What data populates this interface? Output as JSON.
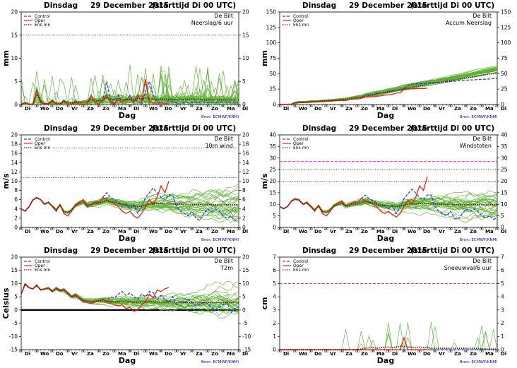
{
  "header": {
    "title_left": "Dinsdag",
    "title_date": "29 December 2015",
    "title_run": "(starttijd  Di 00 UTC)"
  },
  "location": "De Bilt",
  "source": "Bron: ECMWF/KNMI",
  "legend": [
    "Control",
    "Oper",
    "Ens mn"
  ],
  "xlabel": "Dag",
  "colors": {
    "ensemble": "#5ab032",
    "control": "#2244dd",
    "oper": "#ee2211",
    "ens_mean": "#6b1a0a",
    "threshold_dotted": "#000000",
    "threshold_magenta": "#ff00ff",
    "zero_line": "#000000"
  },
  "day_labels": [
    "Di",
    "Wo",
    "Do",
    "Vr",
    "Za",
    "Zo",
    "Ma",
    "Di",
    "Wo",
    "Do",
    "Vr",
    "Za",
    "Zo",
    "Ma",
    "Di"
  ],
  "chart_data": [
    {
      "type": "line",
      "title": "Neerslag/6 uur",
      "ylabel": "mm",
      "ylim": [
        0,
        20
      ],
      "yticks": [
        0,
        5,
        10,
        15,
        20
      ],
      "threshold_lines": [
        {
          "y": 15,
          "style": "dotted"
        }
      ],
      "series": [
        {
          "name": "Control",
          "values": [
            0,
            0.5,
            0,
            0,
            3,
            0.5,
            0,
            0,
            1,
            0,
            0,
            1,
            0,
            0,
            0.5,
            0,
            0,
            0,
            2,
            0.5,
            0,
            1,
            5,
            1,
            0,
            2,
            0.5,
            1,
            2,
            0.5,
            1,
            0,
            3,
            5,
            2,
            0.5,
            0.5,
            0,
            1,
            0.5,
            0.5,
            0,
            0.5,
            0.5,
            0.5,
            0.5,
            0.5,
            0.5,
            0.5,
            0.5,
            0.5,
            0.5,
            0.5,
            0.5,
            0.5,
            0.5,
            0.5
          ]
        },
        {
          "name": "Oper",
          "values": [
            0,
            0.5,
            0,
            0,
            3,
            0.5,
            0,
            0,
            1,
            0,
            0,
            1,
            0,
            0,
            0.5,
            0,
            0,
            0,
            2,
            0.5,
            0,
            1,
            2,
            0.5,
            0,
            1,
            0.5,
            1,
            1,
            0.5,
            2,
            0.5,
            5.5,
            0.5,
            0.5,
            0,
            0.5,
            0,
            0.5
          ]
        },
        {
          "name": "Ens mn",
          "values": [
            0,
            0.3,
            0.1,
            0.1,
            2.2,
            0.8,
            0.2,
            0.2,
            0.6,
            0.3,
            0.2,
            0.6,
            0.4,
            0.3,
            0.6,
            0.4,
            0.5,
            0.6,
            1.1,
            0.8,
            0.8,
            1,
            1.5,
            1.2,
            1,
            1.3,
            1.1,
            1.1,
            1.2,
            1,
            1.3,
            1.2,
            1.4,
            1.3,
            1.2,
            1,
            1.2,
            1.1,
            1.2,
            1.1,
            1.1,
            1,
            1.1,
            1.1,
            1.2,
            1.1,
            1.1,
            1,
            1,
            1.1,
            1,
            1,
            1.1,
            1,
            1,
            1,
            1
          ]
        }
      ]
    },
    {
      "type": "line",
      "title": "Accum Neerslag",
      "ylabel": "mm",
      "ylim": [
        0,
        150
      ],
      "yticks": [
        0,
        25,
        50,
        75,
        100,
        125,
        150
      ],
      "threshold_lines": [],
      "series": [
        {
          "name": "Control",
          "values": [
            0,
            0.5,
            0.5,
            0.5,
            3.5,
            4,
            4,
            4,
            5,
            5,
            5,
            6,
            6,
            6,
            6.5,
            6.5,
            6.5,
            6.5,
            8.5,
            9,
            9,
            10,
            15,
            16,
            16,
            18,
            18.5,
            19.5,
            21.5,
            22,
            23,
            23,
            26,
            31,
            33,
            33.5,
            34,
            34,
            35,
            35.5,
            36,
            36,
            36.5,
            37,
            37.5,
            38,
            38.5,
            39,
            39.5,
            40,
            40,
            40.5,
            41,
            41,
            41.5,
            42,
            42
          ]
        },
        {
          "name": "Oper",
          "values": [
            0,
            0.5,
            0.5,
            0.5,
            3.5,
            4,
            4,
            4,
            5,
            5,
            5,
            6,
            6,
            6,
            6.5,
            6.5,
            6.5,
            6.5,
            8.5,
            9,
            9,
            10,
            12,
            12.5,
            12.5,
            13.5,
            14,
            15,
            16,
            16.5,
            18.5,
            19,
            24.5,
            25,
            25.5,
            25.5,
            26,
            26,
            26.5
          ]
        },
        {
          "name": "Ens mn",
          "values": [
            0,
            0.3,
            0.4,
            0.5,
            2.7,
            3.5,
            3.7,
            3.9,
            4.5,
            4.8,
            5,
            5.6,
            6,
            6.3,
            6.9,
            7.3,
            7.8,
            8.4,
            9.5,
            10.3,
            11.1,
            12.1,
            13.6,
            14.8,
            15.8,
            17.1,
            18.2,
            19.3,
            20.5,
            21.5,
            22.8,
            24,
            25.4,
            26.7,
            27.9,
            28.9,
            30.1,
            31.2,
            32.4,
            33.5,
            34.6,
            35.6,
            36.7,
            37.8,
            39,
            40.1,
            41.2,
            42.2,
            43.2,
            44.3,
            45.3,
            46.3,
            47.4,
            48.4,
            49.4,
            50.4,
            51.4
          ]
        }
      ]
    },
    {
      "type": "line",
      "title": "10m wind",
      "ylabel": "m/s",
      "ylim": [
        0,
        20
      ],
      "yticks": [
        0,
        2,
        4,
        6,
        8,
        10,
        12,
        14,
        16,
        18,
        20
      ],
      "threshold_lines": [
        {
          "y": 10.8,
          "style": "dotted"
        },
        {
          "y": 17.2,
          "style": "dotted"
        }
      ],
      "series": [
        {
          "name": "Control",
          "values": [
            4,
            3.5,
            4.5,
            6,
            6.5,
            6,
            5,
            5.5,
            4.5,
            3.5,
            5,
            3,
            2.5,
            3.5,
            5,
            5.5,
            6,
            4.5,
            5,
            5.5,
            5.5,
            6.5,
            7.5,
            6.5,
            6,
            5.5,
            4.5,
            5,
            4,
            5,
            3,
            4.5,
            6.5,
            7.5,
            8.5,
            7.5,
            6.5,
            6,
            7,
            7,
            4.5,
            3.5,
            3,
            2.5,
            3.5,
            2,
            1.5,
            3,
            4,
            3.5,
            4,
            3.5,
            2.5,
            2,
            2.5,
            1.5,
            2
          ]
        },
        {
          "name": "Oper",
          "values": [
            4,
            3.5,
            4.5,
            6,
            6.5,
            6,
            5,
            5.5,
            4.5,
            3.5,
            5,
            3,
            2.5,
            3.5,
            5,
            5.5,
            6,
            4.5,
            5,
            5.5,
            5.5,
            6.5,
            6,
            5.5,
            5,
            4.5,
            3.5,
            3,
            3.5,
            2.5,
            2,
            3,
            4.5,
            6,
            5,
            6.5,
            9,
            7.5,
            10
          ]
        },
        {
          "name": "Ens mn",
          "values": [
            4,
            3.6,
            4.4,
            5.9,
            6.4,
            6,
            5.1,
            5.4,
            4.6,
            3.8,
            4.8,
            3.4,
            3.2,
            3.8,
            4.8,
            5.2,
            5.5,
            4.8,
            5,
            5.2,
            5.3,
            5.6,
            5.8,
            5.6,
            5.4,
            5.2,
            5,
            4.8,
            4.7,
            4.6,
            4.5,
            4.6,
            4.8,
            5,
            5.1,
            5.1,
            5.2,
            5.2,
            5.2,
            5.1,
            5,
            5,
            5,
            4.9,
            4.9,
            4.9,
            4.9,
            4.9,
            4.9,
            4.9,
            4.9,
            4.9,
            4.9,
            4.9,
            4.9,
            4.9,
            4.9
          ]
        }
      ]
    },
    {
      "type": "line",
      "title": "Windstoten",
      "ylabel": "m/s",
      "ylim": [
        0,
        40
      ],
      "yticks": [
        0,
        5,
        10,
        15,
        20,
        25,
        30,
        35,
        40
      ],
      "threshold_lines": [
        {
          "y": 20,
          "style": "dotted"
        },
        {
          "y": 25,
          "style": "dotted"
        },
        {
          "y": 28.5,
          "style": "dashed-magenta"
        }
      ],
      "series": [
        {
          "name": "Control",
          "values": [
            9,
            8,
            9,
            11.5,
            12.5,
            12,
            10,
            11,
            9,
            7,
            9.5,
            6,
            5,
            7,
            9.5,
            10.5,
            11.5,
            9,
            10,
            11,
            11,
            12.5,
            14,
            12.5,
            11.5,
            10.5,
            9,
            9.5,
            8,
            9.5,
            6,
            9,
            12.5,
            14.5,
            16.5,
            15,
            13,
            12,
            14,
            14,
            9,
            7,
            6,
            5,
            7,
            4,
            3.5,
            6,
            8,
            7,
            8,
            7,
            5,
            4,
            5,
            3.5,
            4
          ]
        },
        {
          "name": "Oper",
          "values": [
            9,
            8,
            9,
            11.5,
            12.5,
            12,
            10,
            11,
            9,
            7,
            9.5,
            6,
            5,
            7,
            9.5,
            10.5,
            11.5,
            9,
            10,
            11,
            11,
            12.5,
            11.5,
            11,
            10,
            9,
            7,
            6,
            7,
            5.5,
            4.5,
            6,
            9,
            12,
            10,
            13,
            18,
            16,
            22
          ]
        },
        {
          "name": "Ens mn",
          "values": [
            9,
            8.2,
            9,
            11.3,
            12.2,
            11.7,
            10.1,
            10.6,
            9.1,
            7.5,
            9.3,
            6.9,
            6.5,
            7.5,
            9.3,
            10,
            10.6,
            9.3,
            9.7,
            10.1,
            10.3,
            10.8,
            11.2,
            10.8,
            10.5,
            10.1,
            9.8,
            9.5,
            9.3,
            9.2,
            9,
            9.2,
            9.6,
            10,
            10.2,
            10.2,
            10.3,
            10.3,
            10.3,
            10.2,
            10.1,
            10,
            10,
            9.9,
            9.9,
            9.8,
            9.8,
            9.8,
            9.8,
            9.8,
            9.8,
            9.8,
            9.8,
            9.8,
            9.8,
            9.8,
            9.8
          ]
        }
      ]
    },
    {
      "type": "line",
      "title": "T2m",
      "ylabel": "Celsius",
      "ylim": [
        -15,
        20
      ],
      "yticks": [
        -15,
        -10,
        -5,
        0,
        5,
        10,
        15,
        20
      ],
      "threshold_lines": [
        {
          "y": 0,
          "style": "zero"
        }
      ],
      "series": [
        {
          "name": "Control",
          "values": [
            6,
            10,
            8.5,
            8,
            9.5,
            7.5,
            8,
            8.5,
            7,
            8.5,
            7.5,
            8,
            6.5,
            5,
            6,
            4.5,
            3,
            3,
            2.5,
            3,
            3.5,
            4,
            3.5,
            5,
            4.5,
            6,
            7,
            5.5,
            6.5,
            5,
            4,
            6,
            5,
            7,
            6.5,
            4,
            5.5,
            4,
            3,
            5,
            2,
            3.5,
            2.5,
            4,
            3,
            1.5,
            2,
            3,
            2.5,
            1,
            0,
            1,
            2,
            3,
            -1,
            0.5,
            1
          ]
        },
        {
          "name": "Oper",
          "values": [
            6,
            10,
            8.5,
            8,
            9.5,
            7.5,
            8,
            8.5,
            7,
            8.5,
            7.5,
            8,
            6.5,
            5,
            6,
            4.5,
            3,
            3,
            2.5,
            3,
            3.5,
            4,
            3.5,
            2.5,
            2,
            1.5,
            2,
            0.5,
            1,
            -0.5,
            0,
            2,
            3,
            6,
            4.5,
            7.5,
            7,
            8,
            8.5
          ]
        },
        {
          "name": "Ens mn",
          "values": [
            6,
            9.6,
            8.4,
            8,
            9.2,
            7.7,
            7.9,
            8.2,
            7.1,
            8,
            7.3,
            7.4,
            6.2,
            5,
            5.4,
            4.5,
            3.6,
            3.4,
            3.2,
            3.3,
            3.3,
            3.4,
            3.2,
            3.2,
            3,
            3.1,
            3.2,
            3,
            3.1,
            2.9,
            2.9,
            3,
            3,
            3.1,
            3.1,
            3,
            3.1,
            3,
            3,
            3,
            2.9,
            2.9,
            2.9,
            2.9,
            2.9,
            2.8,
            2.8,
            2.8,
            2.8,
            2.8,
            2.8,
            2.8,
            2.8,
            2.8,
            2.8,
            2.8,
            2.8
          ]
        }
      ]
    },
    {
      "type": "line",
      "title": "Sneeuwval/6 uur",
      "ylabel": "cm",
      "ylim": [
        0,
        7
      ],
      "yticks": [
        0,
        1,
        2,
        3,
        4,
        5,
        6,
        7
      ],
      "threshold_lines": [
        {
          "y": 5,
          "style": "dashed-magenta"
        }
      ],
      "series": [
        {
          "name": "Control",
          "values": [
            0,
            0,
            0,
            0,
            0,
            0,
            0,
            0,
            0,
            0,
            0,
            0,
            0,
            0,
            0,
            0,
            0,
            0,
            0,
            0,
            0,
            0,
            0,
            0,
            0,
            0,
            0,
            0,
            0,
            0,
            0,
            0,
            0,
            0,
            0,
            0,
            0,
            0,
            0,
            0,
            0,
            0,
            0,
            0,
            0,
            0,
            0,
            0,
            0,
            0,
            0,
            0,
            0,
            0,
            0,
            0,
            0
          ]
        },
        {
          "name": "Oper",
          "values": [
            0,
            0,
            0,
            0,
            0,
            0,
            0,
            0,
            0,
            0,
            0,
            0,
            0,
            0,
            0,
            0,
            0,
            0,
            0,
            0,
            0,
            0,
            0,
            0,
            0,
            0,
            0,
            0,
            0,
            0,
            0,
            0,
            0.9,
            0,
            0,
            0,
            0,
            0,
            0
          ]
        },
        {
          "name": "Ens mn",
          "values": [
            0,
            0,
            0,
            0,
            0,
            0,
            0,
            0,
            0,
            0,
            0,
            0,
            0,
            0,
            0,
            0,
            0,
            0,
            0,
            0,
            0,
            0.05,
            0.1,
            0.15,
            0.15,
            0.1,
            0.15,
            0.2,
            0.2,
            0.15,
            0.2,
            0.25,
            0.25,
            0.2,
            0.2,
            0.15,
            0.2,
            0.15,
            0.15,
            0.1,
            0.1,
            0.1,
            0.1,
            0.1,
            0.1,
            0.1,
            0.1,
            0.1,
            0.1,
            0.1,
            0.1,
            0.1,
            0.05,
            0.05,
            0.05,
            0.05,
            0.05
          ]
        }
      ]
    }
  ]
}
